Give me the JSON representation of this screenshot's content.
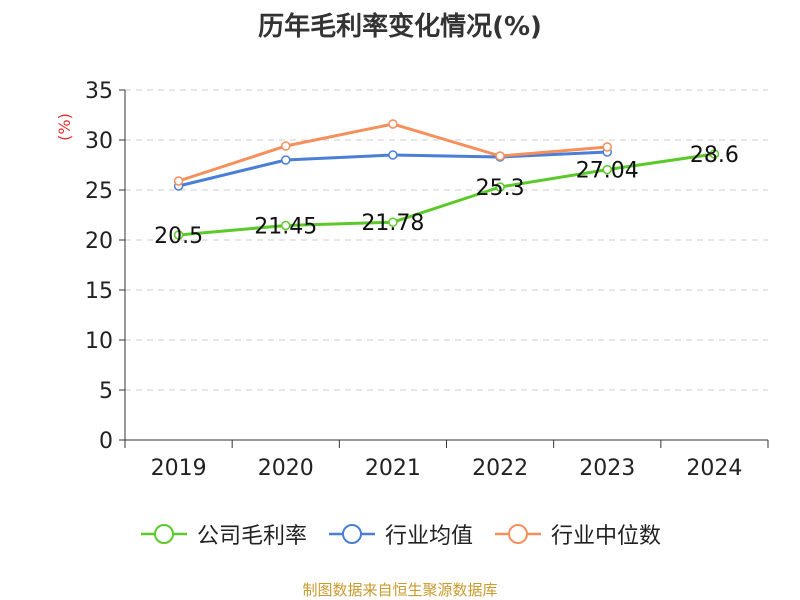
{
  "source": "制图数据来自恒生聚源数据库",
  "chart_data": {
    "type": "line",
    "title": "历年毛利率变化情况(%)",
    "ylabel": "(%)",
    "xlabel": "",
    "categories": [
      "2019",
      "2020",
      "2021",
      "2022",
      "2023",
      "2024"
    ],
    "ylim": [
      0,
      35
    ],
    "yticks": [
      0,
      5,
      10,
      15,
      20,
      25,
      30,
      35
    ],
    "grid": true,
    "legend_position": "bottom",
    "series": [
      {
        "name": "公司毛利率",
        "color": "#5cc92a",
        "values": [
          20.5,
          21.45,
          21.78,
          25.3,
          27.04,
          28.6
        ],
        "labels": [
          "20.5",
          "21.45",
          "21.78",
          "25.3",
          "27.04",
          "28.6"
        ]
      },
      {
        "name": "行业均值",
        "color": "#4a7fd8",
        "values": [
          25.4,
          28.0,
          28.5,
          28.3,
          28.8,
          null
        ]
      },
      {
        "name": "行业中位数",
        "color": "#f58f5c",
        "values": [
          25.9,
          29.4,
          31.6,
          28.4,
          29.3,
          null
        ]
      }
    ]
  }
}
